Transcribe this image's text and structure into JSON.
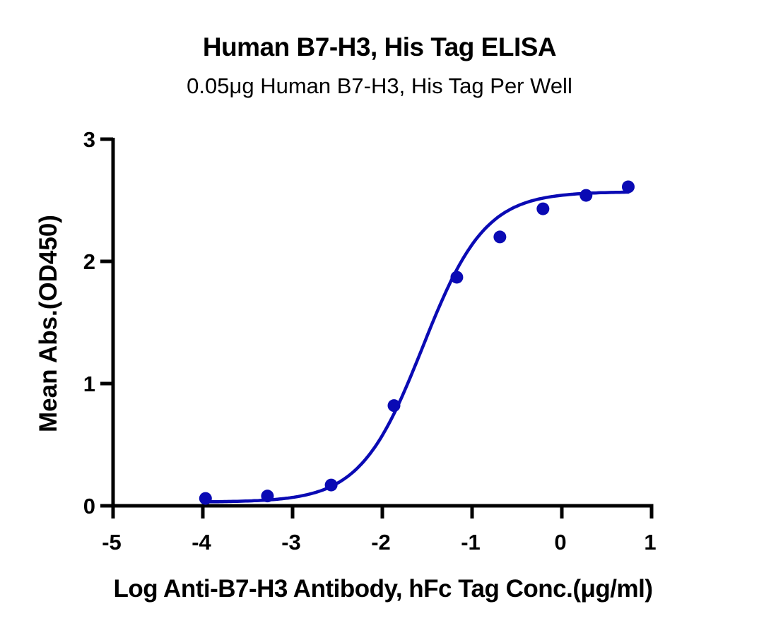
{
  "chart": {
    "title": "Human B7-H3, His Tag ELISA",
    "subtitle": "0.05μg Human B7-H3, His Tag Per Well",
    "xlabel": "Log Anti-B7-H3 Antibody, hFc Tag Conc.(μg/ml)",
    "ylabel": "Mean Abs.(OD450)",
    "x_ticks": [
      "-5",
      "-4",
      "-3",
      "-2",
      "-1",
      "0",
      "1"
    ],
    "y_ticks": [
      "0",
      "1",
      "2",
      "3"
    ],
    "series_color": "#0a0ab4"
  },
  "chart_data": {
    "type": "scatter",
    "title": "Human B7-H3, His Tag ELISA",
    "subtitle": "0.05μg Human B7-H3, His Tag Per Well",
    "xlabel": "Log Anti-B7-H3 Antibody, hFc Tag Conc.(μg/ml)",
    "ylabel": "Mean Abs.(OD450)",
    "xlim": [
      -5,
      1
    ],
    "ylim": [
      0,
      3
    ],
    "x_ticks": [
      -5,
      -4,
      -3,
      -2,
      -1,
      0,
      1
    ],
    "y_ticks": [
      0,
      1,
      2,
      3
    ],
    "grid": false,
    "legend": null,
    "series": [
      {
        "name": "Mean Abs.(OD450)",
        "x": [
          -3.97,
          -3.28,
          -2.57,
          -1.87,
          -1.17,
          -0.69,
          -0.21,
          0.27,
          0.74
        ],
        "y": [
          0.06,
          0.08,
          0.17,
          0.82,
          1.87,
          2.2,
          2.43,
          2.54,
          2.61
        ],
        "marker": "circle",
        "fit": "4PL sigmoid curve",
        "fit_params_estimate": {
          "bottom": 0.03,
          "top": 2.57,
          "logEC50": -1.55,
          "hill": 1.25
        }
      }
    ]
  }
}
